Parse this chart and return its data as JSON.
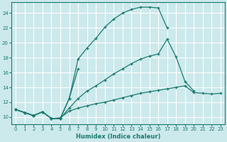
{
  "xlabel": "Humidex (Indice chaleur)",
  "bg_color": "#cce9ec",
  "grid_color": "#ffffff",
  "line_color": "#1a7a6e",
  "xlim": [
    -0.5,
    23.5
  ],
  "ylim": [
    9.0,
    25.5
  ],
  "xtick_labels": [
    "0",
    "1",
    "2",
    "3",
    "4",
    "5",
    "6",
    "7",
    "8",
    "9",
    "10",
    "11",
    "12",
    "13",
    "14",
    "15",
    "16",
    "17",
    "18",
    "19",
    "20",
    "21",
    "22",
    "23"
  ],
  "yticks": [
    10,
    12,
    14,
    16,
    18,
    20,
    22,
    24
  ],
  "series": [
    {
      "x": [
        0,
        1,
        2,
        3,
        4,
        5,
        6,
        7,
        8,
        9,
        10,
        11,
        12,
        13,
        14,
        15,
        16,
        17,
        18,
        19,
        20,
        21,
        22,
        23
      ],
      "y": [
        11.0,
        10.6,
        10.2,
        10.7,
        9.8,
        9.8,
        12.5,
        17.8,
        19.3,
        20.6,
        22.1,
        23.2,
        24.0,
        24.5,
        24.8,
        24.8,
        24.7,
        22.0,
        null,
        null,
        null,
        null,
        null,
        null
      ]
    },
    {
      "x": [
        0,
        1,
        2,
        3,
        4,
        5,
        6,
        7,
        8,
        9,
        10,
        11,
        12,
        13,
        14,
        15,
        16,
        17,
        18,
        19,
        20,
        21,
        22,
        23
      ],
      "y": [
        11.0,
        10.6,
        10.2,
        10.7,
        9.8,
        9.8,
        12.5,
        16.5,
        null,
        null,
        null,
        null,
        null,
        null,
        null,
        null,
        null,
        null,
        null,
        null,
        null,
        null,
        null,
        null
      ]
    },
    {
      "x": [
        0,
        1,
        2,
        3,
        4,
        5,
        6,
        7,
        8,
        9,
        10,
        11,
        12,
        13,
        14,
        15,
        16,
        17,
        18,
        19,
        20,
        21,
        22,
        23
      ],
      "y": [
        11.0,
        10.6,
        10.2,
        10.7,
        9.8,
        9.8,
        11.2,
        12.5,
        13.5,
        14.2,
        15.0,
        15.8,
        16.5,
        17.2,
        17.8,
        18.2,
        18.5,
        20.5,
        18.1,
        14.8,
        13.5,
        null,
        null,
        null
      ]
    },
    {
      "x": [
        0,
        1,
        2,
        3,
        4,
        5,
        6,
        7,
        8,
        9,
        10,
        11,
        12,
        13,
        14,
        15,
        16,
        17,
        18,
        19,
        20,
        21,
        22,
        23
      ],
      "y": [
        11.0,
        10.6,
        10.2,
        10.7,
        9.8,
        9.9,
        10.8,
        11.2,
        11.5,
        11.8,
        12.0,
        12.3,
        12.6,
        12.9,
        13.2,
        13.4,
        13.6,
        13.8,
        14.0,
        14.2,
        13.3,
        13.2,
        13.1,
        13.2
      ]
    }
  ]
}
